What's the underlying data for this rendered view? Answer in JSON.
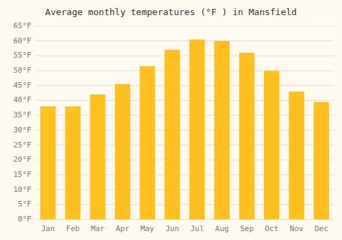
{
  "chart_data": {
    "type": "bar",
    "title": "Average monthly temperatures (°F ) in Mansfield",
    "categories": [
      "Jan",
      "Feb",
      "Mar",
      "Apr",
      "May",
      "Jun",
      "Jul",
      "Aug",
      "Sep",
      "Oct",
      "Nov",
      "Dec"
    ],
    "values": [
      38,
      38,
      42,
      45.5,
      51.5,
      57,
      60.5,
      60,
      56,
      50,
      43,
      39.5
    ],
    "color": "#FFC020",
    "ylim": [
      0,
      65
    ],
    "yticks": [
      {
        "value": 0,
        "label": "0°F"
      },
      {
        "value": 5,
        "label": "5°F"
      },
      {
        "value": 10,
        "label": "10°F"
      },
      {
        "value": 15,
        "label": "15°F"
      },
      {
        "value": 20,
        "label": "20°F"
      },
      {
        "value": 25,
        "label": "25°F"
      },
      {
        "value": 30,
        "label": "30°F"
      },
      {
        "value": 35,
        "label": "35°F"
      },
      {
        "value": 40,
        "label": "40°F"
      },
      {
        "value": 45,
        "label": "45°F"
      },
      {
        "value": 50,
        "label": "50°F"
      },
      {
        "value": 55,
        "label": "55°F"
      },
      {
        "value": 60,
        "label": "60°F"
      },
      {
        "value": 65,
        "label": "65°F"
      }
    ],
    "grid": true
  }
}
